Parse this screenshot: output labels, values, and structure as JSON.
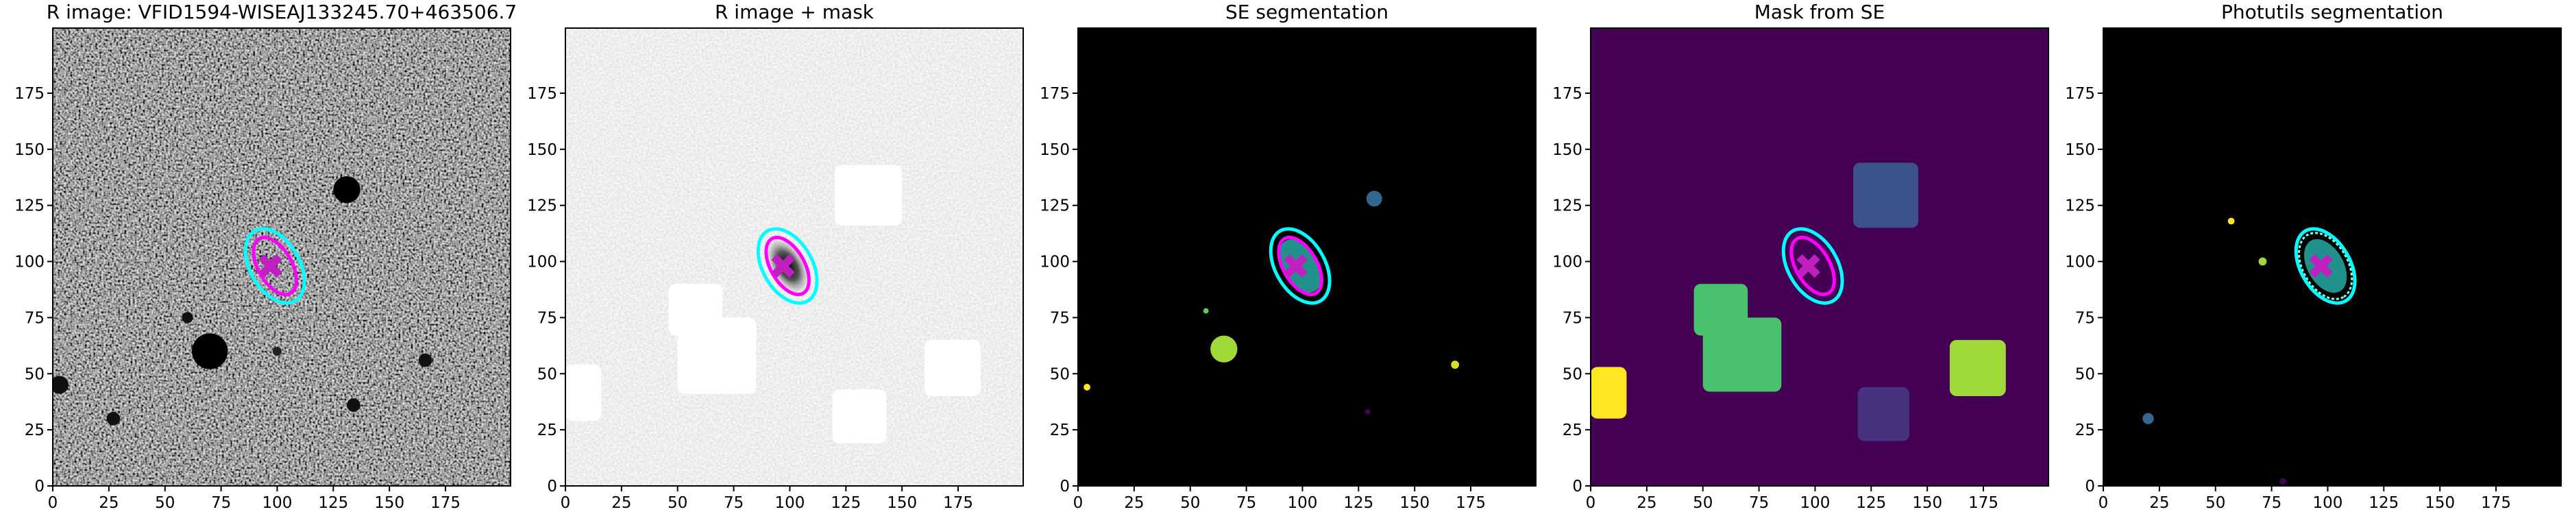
{
  "chart_data": [
    {
      "type": "image",
      "title": "R image: VFID1594-WISEAJ133245.70+463506.7",
      "xlim": [
        0,
        204
      ],
      "ylim": [
        0,
        204
      ],
      "xticks": [
        0,
        25,
        50,
        75,
        100,
        125,
        150,
        175
      ],
      "yticks": [
        0,
        25,
        50,
        75,
        100,
        125,
        150,
        175
      ]
    },
    {
      "type": "image",
      "title": "R image + mask",
      "xlim": [
        0,
        204
      ],
      "ylim": [
        0,
        204
      ],
      "xticks": [
        0,
        25,
        50,
        75,
        100,
        125,
        150,
        175
      ],
      "yticks": [
        0,
        25,
        50,
        75,
        100,
        125,
        150,
        175
      ]
    },
    {
      "type": "image",
      "title": "SE segmentation",
      "xlim": [
        0,
        204
      ],
      "ylim": [
        0,
        204
      ],
      "xticks": [
        0,
        25,
        50,
        75,
        100,
        125,
        150,
        175
      ],
      "yticks": [
        0,
        25,
        50,
        75,
        100,
        125,
        150,
        175
      ]
    },
    {
      "type": "image",
      "title": "Mask from SE",
      "xlim": [
        0,
        204
      ],
      "ylim": [
        0,
        204
      ],
      "xticks": [
        0,
        25,
        50,
        75,
        100,
        125,
        150,
        175
      ],
      "yticks": [
        0,
        25,
        50,
        75,
        100,
        125,
        150,
        175
      ]
    },
    {
      "type": "image",
      "title": "Photutils segmentation",
      "xlim": [
        0,
        204
      ],
      "ylim": [
        0,
        204
      ],
      "xticks": [
        0,
        25,
        50,
        75,
        100,
        125,
        150,
        175
      ],
      "yticks": [
        0,
        25,
        50,
        75,
        100,
        125,
        150,
        175
      ]
    }
  ]
}
